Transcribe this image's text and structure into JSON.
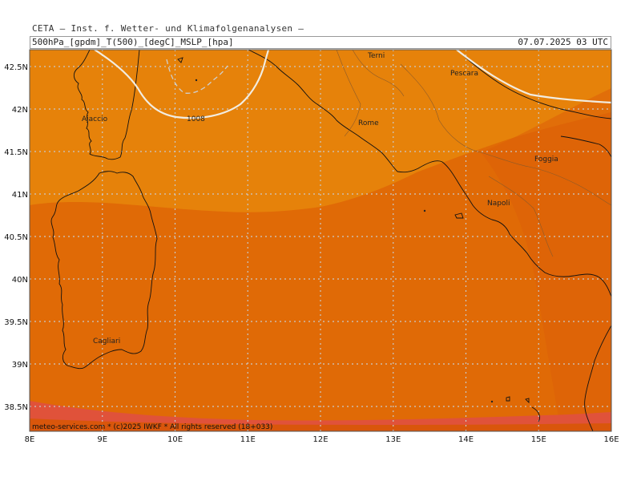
{
  "header": {
    "title": "CETA — Inst. f. Wetter- und Klimafolgenanalysen —",
    "params": "500hPa_[gpdm]_T(500)_[degC]_MSLP_[hpa]",
    "valid_time": "07.07.2025 03 UTC"
  },
  "map": {
    "lon_labels": [
      "8E",
      "9E",
      "10E",
      "11E",
      "12E",
      "13E",
      "14E",
      "15E",
      "16E"
    ],
    "lat_labels": [
      "42.5N",
      "42N",
      "41.5N",
      "41N",
      "40.5N",
      "40N",
      "39.5N",
      "39N",
      "38.5N"
    ],
    "cities": {
      "ajaccio": "Ajaccio",
      "terni": "Terni",
      "pescara": "Pescara",
      "rome": "Rome",
      "foggia": "Foggia",
      "napoli": "Napoli",
      "cagliari": "Cagliari"
    },
    "isobar_label": "1008",
    "colors": {
      "band_light": "#e6820a",
      "band_mid": "#e06a06",
      "band_dark": "#d9560b",
      "band_red": "#e0523a",
      "isobar": "#f2ece0",
      "coast": "#111111",
      "grid": "#c9c9c9"
    }
  },
  "footer": {
    "copyright": "meteo-services.com * (c)2025 IWKF * All rights reserved (18+033)"
  }
}
